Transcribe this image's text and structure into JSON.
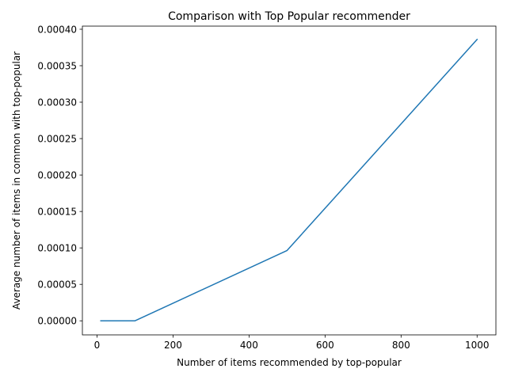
{
  "chart_data": {
    "type": "line",
    "title": "Comparison with Top Popular recommender",
    "xlabel": "Number of items recommended by top-popular",
    "ylabel": "Average number of items in common with top-popular",
    "xlim": [
      -38.5,
      1049.5
    ],
    "ylim": [
      -1.93e-05,
      0.0004043
    ],
    "xticks": [
      0,
      200,
      400,
      600,
      800,
      1000
    ],
    "xtick_labels": [
      "0",
      "200",
      "400",
      "600",
      "800",
      "1000"
    ],
    "yticks": [
      0,
      5e-05,
      0.0001,
      0.00015,
      0.0002,
      0.00025,
      0.0003,
      0.00035,
      0.0004
    ],
    "ytick_labels": [
      "0.00000",
      "0.00005",
      "0.00010",
      "0.00015",
      "0.00020",
      "0.00025",
      "0.00030",
      "0.00035",
      "0.00040"
    ],
    "grid": false,
    "series": [
      {
        "color": "#1f77b4",
        "x": [
          10,
          100,
          500,
          1000
        ],
        "y": [
          0,
          0,
          9.65e-05,
          0.000386
        ]
      }
    ]
  }
}
